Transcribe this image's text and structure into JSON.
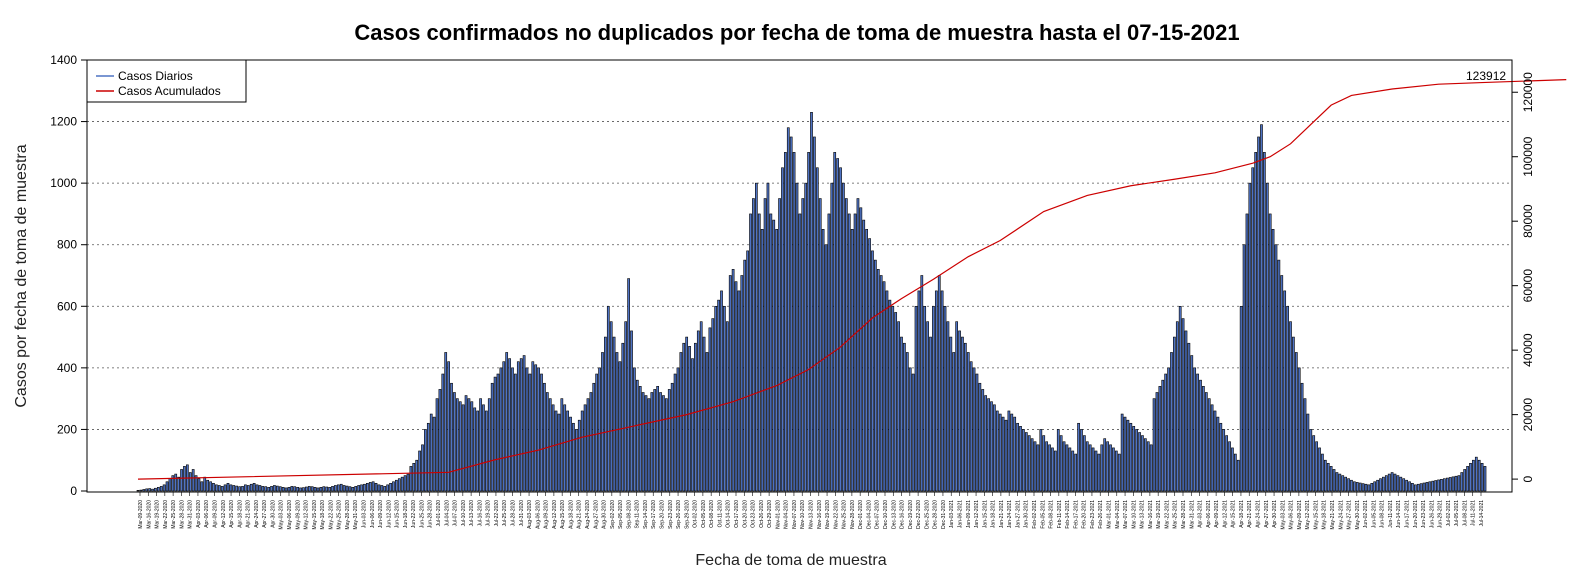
{
  "chart_data": {
    "type": "bar",
    "title": "Casos confirmados no duplicados por fecha de toma de muestra hasta el 07-15-2021",
    "xlabel": "Fecha de toma de muestra",
    "ylabel": "Casos por fecha de toma de muestra",
    "ylim": [
      0,
      1400
    ],
    "yticks": [
      0,
      200,
      400,
      600,
      800,
      1000,
      1200,
      1400
    ],
    "y2lim": [
      -4000,
      130000
    ],
    "y2ticks": [
      0,
      20000,
      40000,
      60000,
      80000,
      100000,
      120000
    ],
    "grid": "horizontal dotted",
    "legend_position": "top-left",
    "legend": [
      "Casos Diarios",
      "Casos Acumulados"
    ],
    "colors": {
      "daily": "#4f73c4",
      "cumulative": "#cc0000"
    },
    "start_date": "2020-03-09",
    "xtick_labels": [
      "Mar-09-2020",
      "Mar-16-2020",
      "Mar-19-2020",
      "Mar-22-2020",
      "Mar-25-2020",
      "Mar-28-2020",
      "Mar-31-2020",
      "Apr-03-2020",
      "Apr-06-2020",
      "Apr-09-2020",
      "Apr-12-2020",
      "Apr-15-2020",
      "Apr-18-2020",
      "Apr-21-2020",
      "Apr-24-2020",
      "Apr-27-2020",
      "Apr-30-2020",
      "May-03-2020",
      "May-06-2020",
      "May-09-2020",
      "May-12-2020",
      "May-15-2020",
      "May-18-2020",
      "May-22-2020",
      "May-25-2020",
      "May-28-2020",
      "May-31-2020",
      "Jun-03-2020",
      "Jun-06-2020",
      "Jun-09-2020",
      "Jun-12-2020",
      "Jun-15-2020",
      "Jun-18-2020",
      "Jun-22-2020",
      "Jun-25-2020",
      "Jun-28-2020",
      "Jul-01-2020",
      "Jul-04-2020",
      "Jul-07-2020",
      "Jul-10-2020",
      "Jul-13-2020",
      "Jul-16-2020",
      "Jul-19-2020",
      "Jul-22-2020",
      "Jul-25-2020",
      "Jul-28-2020",
      "Jul-31-2020",
      "Aug-03-2020",
      "Aug-06-2020",
      "Aug-09-2020",
      "Aug-12-2020",
      "Aug-15-2020",
      "Aug-18-2020",
      "Aug-21-2020",
      "Aug-24-2020",
      "Aug-27-2020",
      "Aug-30-2020",
      "Sep-02-2020",
      "Sep-05-2020",
      "Sep-08-2020",
      "Sep-11-2020",
      "Sep-14-2020",
      "Sep-17-2020",
      "Sep-20-2020",
      "Sep-23-2020",
      "Sep-26-2020",
      "Sep-29-2020",
      "Oct-02-2020",
      "Oct-05-2020",
      "Oct-08-2020",
      "Oct-11-2020",
      "Oct-14-2020",
      "Oct-17-2020",
      "Oct-20-2020",
      "Oct-23-2020",
      "Oct-26-2020",
      "Oct-29-2020",
      "Nov-01-2020",
      "Nov-04-2020",
      "Nov-07-2020",
      "Nov-10-2020",
      "Nov-13-2020",
      "Nov-16-2020",
      "Nov-19-2020",
      "Nov-22-2020",
      "Nov-25-2020",
      "Nov-28-2020",
      "Dec-01-2020",
      "Dec-04-2020",
      "Dec-07-2020",
      "Dec-10-2020",
      "Dec-13-2020",
      "Dec-16-2020",
      "Dec-19-2020",
      "Dec-22-2020",
      "Dec-25-2020",
      "Dec-28-2020",
      "Dec-31-2020",
      "Jan-03-2021",
      "Jan-06-2021",
      "Jan-09-2021",
      "Jan-12-2021",
      "Jan-15-2021",
      "Jan-18-2021",
      "Jan-21-2021",
      "Jan-24-2021",
      "Jan-27-2021",
      "Jan-30-2021",
      "Feb-02-2021",
      "Feb-05-2021",
      "Feb-08-2021",
      "Feb-11-2021",
      "Feb-14-2021",
      "Feb-17-2021",
      "Feb-20-2021",
      "Feb-23-2021",
      "Feb-26-2021",
      "Mar-01-2021",
      "Mar-04-2021",
      "Mar-07-2021",
      "Mar-10-2021",
      "Mar-13-2021",
      "Mar-16-2021",
      "Mar-19-2021",
      "Mar-22-2021",
      "Mar-25-2021",
      "Mar-28-2021",
      "Mar-31-2021",
      "Apr-03-2021",
      "Apr-06-2021",
      "Apr-09-2021",
      "Apr-12-2021",
      "Apr-15-2021",
      "Apr-18-2021",
      "Apr-21-2021",
      "Apr-24-2021",
      "Apr-27-2021",
      "Apr-30-2021",
      "May-03-2021",
      "May-06-2021",
      "May-09-2021",
      "May-12-2021",
      "May-15-2021",
      "May-18-2021",
      "May-21-2021",
      "May-24-2021",
      "May-27-2021",
      "May-30-2021",
      "Jun-02-2021",
      "Jun-05-2021",
      "Jun-08-2021",
      "Jun-11-2021",
      "Jun-14-2021",
      "Jun-17-2021",
      "Jun-20-2021",
      "Jun-23-2021",
      "Jun-26-2021",
      "Jun-29-2021",
      "Jul-02-2021",
      "Jul-05-2021",
      "Jul-08-2021",
      "Jul-11-2021",
      "Jul-14-2021"
    ],
    "cumulative_final_label": "123912",
    "series": [
      {
        "name": "Casos Diarios",
        "values": [
          2,
          3,
          5,
          7,
          8,
          6,
          9,
          12,
          15,
          20,
          30,
          40,
          50,
          55,
          45,
          70,
          80,
          85,
          60,
          70,
          50,
          40,
          30,
          45,
          35,
          30,
          25,
          20,
          18,
          15,
          20,
          25,
          20,
          18,
          16,
          14,
          15,
          20,
          18,
          22,
          25,
          20,
          18,
          15,
          14,
          12,
          15,
          18,
          16,
          14,
          12,
          10,
          12,
          15,
          14,
          12,
          10,
          11,
          13,
          15,
          14,
          12,
          10,
          12,
          14,
          13,
          12,
          15,
          18,
          20,
          22,
          18,
          16,
          14,
          12,
          15,
          18,
          20,
          22,
          25,
          28,
          30,
          25,
          20,
          18,
          15,
          20,
          25,
          30,
          35,
          40,
          45,
          50,
          55,
          80,
          90,
          100,
          130,
          150,
          200,
          220,
          250,
          240,
          300,
          330,
          380,
          450,
          420,
          350,
          320,
          300,
          290,
          280,
          310,
          300,
          290,
          270,
          260,
          300,
          280,
          260,
          300,
          350,
          370,
          380,
          400,
          420,
          450,
          430,
          400,
          380,
          420,
          430,
          440,
          400,
          380,
          420,
          410,
          400,
          380,
          350,
          320,
          300,
          280,
          260,
          250,
          300,
          280,
          260,
          240,
          220,
          200,
          230,
          260,
          280,
          300,
          320,
          350,
          380,
          400,
          450,
          500,
          600,
          550,
          500,
          450,
          420,
          480,
          550,
          690,
          520,
          400,
          360,
          340,
          320,
          310,
          300,
          320,
          330,
          340,
          320,
          310,
          300,
          330,
          350,
          380,
          400,
          450,
          480,
          500,
          470,
          430,
          480,
          520,
          550,
          500,
          450,
          530,
          560,
          600,
          620,
          650,
          600,
          550,
          700,
          720,
          680,
          650,
          700,
          750,
          780,
          900,
          950,
          1000,
          900,
          850,
          950,
          1000,
          900,
          880,
          850,
          950,
          1050,
          1100,
          1180,
          1150,
          1100,
          1000,
          900,
          950,
          1000,
          1100,
          1230,
          1150,
          1050,
          950,
          850,
          800,
          900,
          1000,
          1100,
          1080,
          1050,
          1000,
          950,
          900,
          850,
          900,
          950,
          920,
          880,
          850,
          820,
          780,
          750,
          720,
          700,
          680,
          650,
          620,
          600,
          580,
          550,
          500,
          480,
          450,
          400,
          380,
          600,
          650,
          700,
          600,
          550,
          500,
          600,
          650,
          700,
          650,
          600,
          550,
          500,
          450,
          550,
          520,
          500,
          480,
          450,
          420,
          400,
          380,
          350,
          330,
          310,
          300,
          290,
          280,
          260,
          250,
          240,
          230,
          260,
          250,
          240,
          220,
          210,
          200,
          190,
          180,
          170,
          160,
          150,
          200,
          180,
          160,
          150,
          140,
          130,
          200,
          180,
          160,
          150,
          140,
          130,
          120,
          220,
          200,
          180,
          160,
          150,
          140,
          130,
          120,
          150,
          170,
          160,
          150,
          140,
          130,
          120,
          250,
          240,
          230,
          220,
          210,
          200,
          190,
          180,
          170,
          160,
          150,
          300,
          320,
          340,
          360,
          380,
          400,
          450,
          500,
          550,
          600,
          560,
          520,
          480,
          440,
          400,
          380,
          360,
          340,
          320,
          300,
          280,
          260,
          240,
          220,
          200,
          180,
          160,
          140,
          120,
          100,
          600,
          800,
          900,
          1000,
          1050,
          1100,
          1150,
          1190,
          1100,
          1000,
          900,
          850,
          800,
          750,
          700,
          650,
          600,
          550,
          500,
          450,
          400,
          350,
          300,
          250,
          200,
          180,
          160,
          140,
          120,
          100,
          90,
          80,
          70,
          60,
          55,
          50,
          45,
          40,
          35,
          30,
          28,
          26,
          24,
          22,
          20,
          25,
          30,
          35,
          40,
          45,
          50,
          55,
          60,
          55,
          50,
          45,
          40,
          35,
          30,
          25,
          20,
          22,
          24,
          26,
          28,
          30,
          32,
          34,
          36,
          38,
          40,
          42,
          44,
          46,
          48,
          50,
          60,
          70,
          80,
          90,
          100,
          110,
          100,
          90,
          80
        ]
      },
      {
        "name": "Casos Acumulados",
        "x": [
          "2020-03-09",
          "2020-06-24",
          "2020-07-10",
          "2020-07-25",
          "2020-08-09",
          "2020-08-27",
          "2020-09-14",
          "2020-09-30",
          "2020-10-15",
          "2020-10-26",
          "2020-11-06",
          "2020-11-17",
          "2020-11-27",
          "2020-12-08",
          "2020-12-20",
          "2020-12-31",
          "2021-01-15",
          "2021-01-30",
          "2021-02-14",
          "2021-03-01",
          "2021-03-15",
          "2021-03-28",
          "2021-04-03",
          "2021-04-10",
          "2021-04-17",
          "2021-04-24",
          "2021-05-01",
          "2021-05-15",
          "2021-05-31",
          "2021-06-15",
          "2021-07-14"
        ],
        "values": [
          0,
          2100,
          6000,
          9000,
          13000,
          16500,
          20000,
          24000,
          29000,
          34000,
          41000,
          50000,
          56000,
          62000,
          69000,
          74000,
          83000,
          88000,
          91000,
          93000,
          95000,
          98000,
          100000,
          104000,
          110000,
          116000,
          119000,
          121000,
          122500,
          123000,
          123912
        ]
      }
    ]
  }
}
